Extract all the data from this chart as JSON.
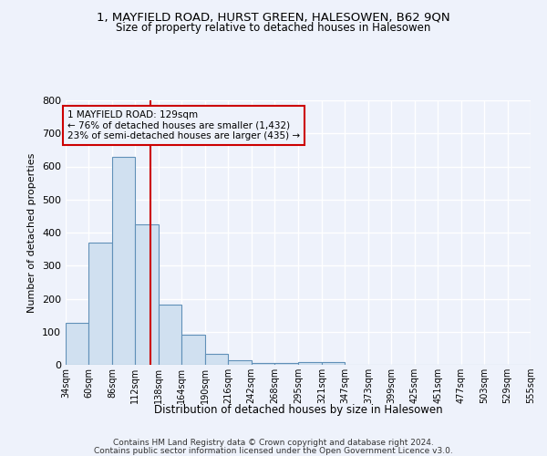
{
  "title": "1, MAYFIELD ROAD, HURST GREEN, HALESOWEN, B62 9QN",
  "subtitle": "Size of property relative to detached houses in Halesowen",
  "xlabel": "Distribution of detached houses by size in Halesowen",
  "ylabel": "Number of detached properties",
  "bar_color": "#d0e0f0",
  "bar_edge_color": "#6090b8",
  "background_color": "#eef2fb",
  "grid_color": "#ffffff",
  "annotation_line_color": "#cc0000",
  "annotation_box_color": "#cc0000",
  "property_sqm": 129,
  "annotation_text": "1 MAYFIELD ROAD: 129sqm\n← 76% of detached houses are smaller (1,432)\n23% of semi-detached houses are larger (435) →",
  "bins": [
    34,
    60,
    86,
    112,
    138,
    164,
    190,
    216,
    242,
    268,
    295,
    321,
    347,
    373,
    399,
    425,
    451,
    477,
    503,
    529,
    555
  ],
  "counts": [
    128,
    370,
    630,
    425,
    183,
    90,
    33,
    15,
    5,
    6,
    8,
    7,
    0,
    0,
    0,
    0,
    0,
    0,
    0,
    0
  ],
  "ylim": [
    0,
    800
  ],
  "yticks": [
    0,
    100,
    200,
    300,
    400,
    500,
    600,
    700,
    800
  ],
  "footer_line1": "Contains HM Land Registry data © Crown copyright and database right 2024.",
  "footer_line2": "Contains public sector information licensed under the Open Government Licence v3.0."
}
